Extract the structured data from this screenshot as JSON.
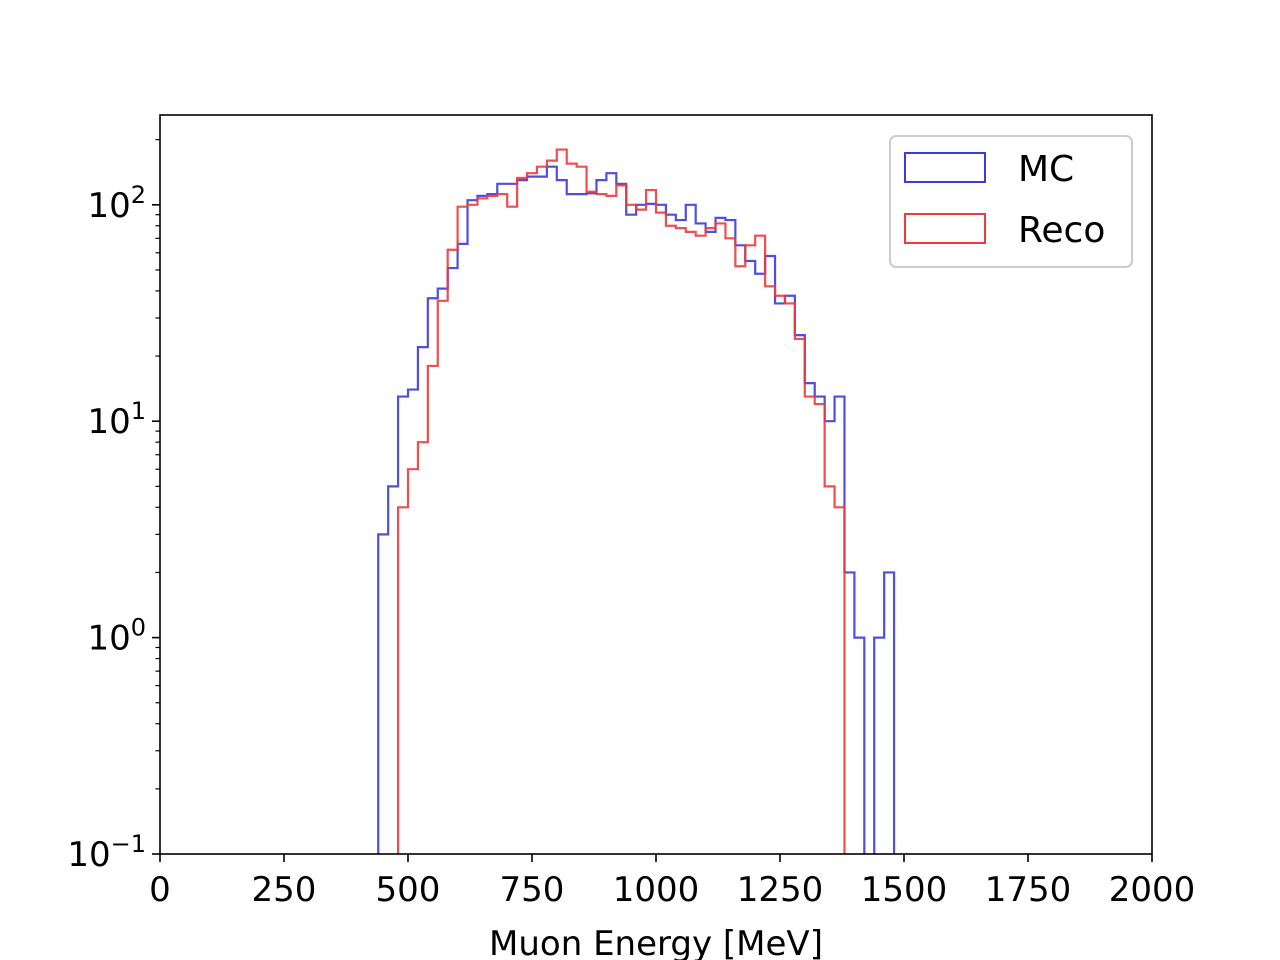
{
  "chart_data": {
    "type": "histogram",
    "xlabel": "Muon Energy [MeV]",
    "ylabel": "",
    "title": "",
    "xlim": [
      0,
      2000
    ],
    "ylim": [
      0.1,
      260
    ],
    "yscale": "log",
    "bin_width": 20,
    "x_ticks": [
      0,
      250,
      500,
      750,
      1000,
      1250,
      1500,
      1750,
      2000
    ],
    "y_ticks": [
      {
        "value": 0.1,
        "base": "10",
        "exp": "−1"
      },
      {
        "value": 1,
        "base": "10",
        "exp": "0"
      },
      {
        "value": 10,
        "base": "10",
        "exp": "1"
      },
      {
        "value": 100,
        "base": "10",
        "exp": "2"
      }
    ],
    "legend": {
      "placement": "top-right",
      "frame": true
    },
    "series": [
      {
        "name": "MC",
        "color": "#3b3bdc",
        "bins": [
          [
            440,
            3
          ],
          [
            460,
            5
          ],
          [
            480,
            13
          ],
          [
            500,
            14
          ],
          [
            520,
            22
          ],
          [
            540,
            37
          ],
          [
            560,
            41
          ],
          [
            580,
            51
          ],
          [
            600,
            66
          ],
          [
            620,
            105
          ],
          [
            640,
            110
          ],
          [
            660,
            112
          ],
          [
            680,
            125
          ],
          [
            700,
            125
          ],
          [
            720,
            130
          ],
          [
            740,
            135
          ],
          [
            760,
            135
          ],
          [
            780,
            150
          ],
          [
            800,
            130
          ],
          [
            820,
            112
          ],
          [
            840,
            112
          ],
          [
            860,
            113
          ],
          [
            880,
            130
          ],
          [
            900,
            140
          ],
          [
            920,
            125
          ],
          [
            940,
            90
          ],
          [
            960,
            100
          ],
          [
            980,
            101
          ],
          [
            1000,
            100
          ],
          [
            1020,
            90
          ],
          [
            1040,
            85
          ],
          [
            1060,
            100
          ],
          [
            1080,
            82
          ],
          [
            1100,
            75
          ],
          [
            1120,
            87
          ],
          [
            1140,
            85
          ],
          [
            1160,
            65
          ],
          [
            1180,
            55
          ],
          [
            1200,
            48
          ],
          [
            1220,
            58
          ],
          [
            1240,
            35
          ],
          [
            1260,
            38
          ],
          [
            1280,
            25
          ],
          [
            1300,
            15
          ],
          [
            1320,
            13
          ],
          [
            1340,
            10
          ],
          [
            1360,
            13
          ],
          [
            1380,
            2
          ],
          [
            1400,
            1
          ],
          [
            1420,
            0
          ],
          [
            1440,
            1
          ],
          [
            1460,
            2
          ]
        ]
      },
      {
        "name": "Reco",
        "color": "#ee3a3a",
        "bins": [
          [
            480,
            4
          ],
          [
            500,
            6
          ],
          [
            520,
            8
          ],
          [
            540,
            18
          ],
          [
            560,
            36
          ],
          [
            580,
            62
          ],
          [
            600,
            98
          ],
          [
            620,
            100
          ],
          [
            640,
            107
          ],
          [
            660,
            110
          ],
          [
            680,
            112
          ],
          [
            700,
            98
          ],
          [
            720,
            133
          ],
          [
            740,
            140
          ],
          [
            760,
            150
          ],
          [
            780,
            160
          ],
          [
            800,
            180
          ],
          [
            820,
            155
          ],
          [
            840,
            150
          ],
          [
            860,
            115
          ],
          [
            880,
            112
          ],
          [
            900,
            110
          ],
          [
            920,
            123
          ],
          [
            940,
            100
          ],
          [
            960,
            95
          ],
          [
            980,
            117
          ],
          [
            1000,
            92
          ],
          [
            1020,
            80
          ],
          [
            1040,
            78
          ],
          [
            1060,
            75
          ],
          [
            1080,
            72
          ],
          [
            1100,
            78
          ],
          [
            1120,
            82
          ],
          [
            1140,
            70
          ],
          [
            1160,
            52
          ],
          [
            1180,
            65
          ],
          [
            1200,
            72
          ],
          [
            1220,
            42
          ],
          [
            1240,
            38
          ],
          [
            1260,
            35
          ],
          [
            1280,
            24
          ],
          [
            1300,
            13
          ],
          [
            1320,
            12
          ],
          [
            1340,
            5
          ],
          [
            1360,
            4
          ]
        ]
      }
    ]
  }
}
